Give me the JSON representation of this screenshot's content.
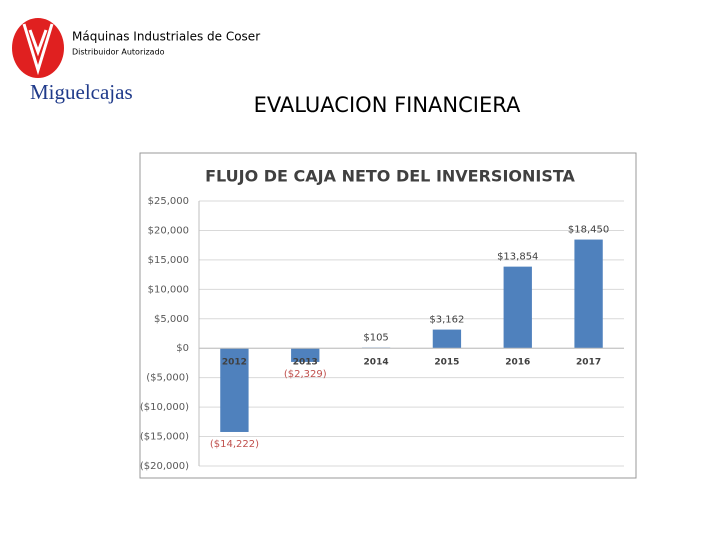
{
  "header": {
    "company": "Máquinas Industriales de Coser",
    "subtitle": "Distribuidor Autorizado",
    "brand": "Miguelcajas",
    "heading": "EVALUACION FINANCIERA"
  },
  "chart_data": {
    "type": "bar",
    "title": "FLUJO DE CAJA NETO DEL INVERSIONISTA",
    "categories": [
      "2012",
      "2013",
      "2014",
      "2015",
      "2016",
      "2017"
    ],
    "values": [
      -14222,
      -2329,
      105,
      3162,
      13854,
      18450
    ],
    "value_labels": [
      "($14,222)",
      "($2,329)",
      "$105",
      "$3,162",
      "$13,854",
      "$18,450"
    ],
    "color": "#4f81bd",
    "label_color": "#404040",
    "negative_label_color": "#c0504d",
    "ylim": [
      -20000,
      25000
    ],
    "yticks": [
      {
        "value": -20000,
        "label": "($20,000)"
      },
      {
        "value": -15000,
        "label": "($15,000)"
      },
      {
        "value": -10000,
        "label": "($10,000)"
      },
      {
        "value": -5000,
        "label": "($5,000)"
      },
      {
        "value": 0,
        "label": "$0"
      },
      {
        "value": 5000,
        "label": "$5,000"
      },
      {
        "value": 10000,
        "label": "$10,000"
      },
      {
        "value": 15000,
        "label": "$15,000"
      },
      {
        "value": 20000,
        "label": "$20,000"
      },
      {
        "value": 25000,
        "label": "$25,000"
      }
    ],
    "grid": true
  }
}
